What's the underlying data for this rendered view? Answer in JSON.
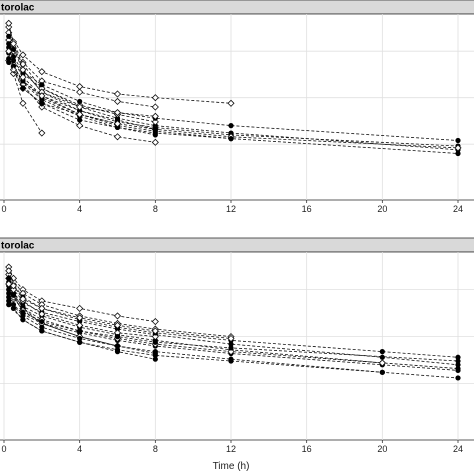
{
  "chart_data": [
    {
      "type": "line",
      "panel_title": "torolac",
      "x_ticks": [
        0,
        4,
        8,
        12,
        16,
        20,
        24
      ],
      "xlim": [
        0,
        24
      ],
      "ylim": [
        0,
        1
      ],
      "grid": true,
      "markers": {
        "observed": "open-diamond",
        "other": "filled-circle"
      },
      "series": [
        {
          "marker": "diamond",
          "x": [
            0.25,
            0.5,
            1,
            2,
            4,
            6,
            8
          ],
          "y": [
            0.86,
            0.8,
            0.74,
            0.64,
            0.58,
            0.53,
            0.5
          ]
        },
        {
          "marker": "circle",
          "x": [
            0.25,
            0.5,
            1,
            2,
            4,
            6,
            8,
            12,
            24
          ],
          "y": [
            0.82,
            0.75,
            0.68,
            0.6,
            0.5,
            0.44,
            0.4,
            0.36,
            0.27
          ]
        },
        {
          "marker": "diamond",
          "x": [
            0.25,
            1,
            2,
            4,
            6,
            8,
            12
          ],
          "y": [
            0.9,
            0.78,
            0.69,
            0.61,
            0.57,
            0.55,
            0.52
          ]
        },
        {
          "marker": "circle",
          "x": [
            0.5,
            1,
            2,
            4,
            6,
            8,
            12,
            24
          ],
          "y": [
            0.72,
            0.64,
            0.55,
            0.46,
            0.4,
            0.37,
            0.33,
            0.25
          ]
        },
        {
          "marker": "diamond",
          "x": [
            0.25,
            0.5,
            1,
            2,
            4,
            6,
            8
          ],
          "y": [
            0.93,
            0.85,
            0.73,
            0.6,
            0.51,
            0.46,
            0.42
          ]
        },
        {
          "marker": "circle",
          "x": [
            0.25,
            0.5,
            1,
            2,
            4,
            6,
            8
          ],
          "y": [
            0.79,
            0.72,
            0.63,
            0.54,
            0.45,
            0.39,
            0.35
          ]
        },
        {
          "marker": "diamond",
          "x": [
            0.5,
            1,
            2
          ],
          "y": [
            0.68,
            0.52,
            0.36
          ]
        },
        {
          "marker": "diamond",
          "x": [
            0.25,
            1,
            2,
            4,
            6,
            8
          ],
          "y": [
            0.75,
            0.62,
            0.5,
            0.4,
            0.34,
            0.31
          ]
        },
        {
          "marker": "circle",
          "x": [
            0.25,
            0.5,
            1,
            2,
            4,
            6,
            8,
            12,
            24
          ],
          "y": [
            0.84,
            0.77,
            0.69,
            0.62,
            0.53,
            0.47,
            0.44,
            0.4,
            0.32
          ]
        },
        {
          "marker": "circle",
          "x": [
            0.25,
            1,
            2,
            4,
            6,
            8,
            12,
            24
          ],
          "y": [
            0.76,
            0.64,
            0.56,
            0.48,
            0.42,
            0.39,
            0.35,
            0.29
          ]
        },
        {
          "marker": "diamond",
          "x": [
            0.5,
            1,
            2,
            4,
            6,
            8,
            12,
            24
          ],
          "y": [
            0.7,
            0.6,
            0.52,
            0.46,
            0.41,
            0.38,
            0.34,
            0.28
          ]
        },
        {
          "marker": "circle",
          "x": [
            0.25,
            0.5,
            1,
            2,
            4,
            6,
            8
          ],
          "y": [
            0.88,
            0.81,
            0.7,
            0.58,
            0.48,
            0.43,
            0.38
          ]
        },
        {
          "marker": "diamond",
          "x": [
            0.25,
            0.5,
            1,
            2,
            4,
            6,
            8
          ],
          "y": [
            0.95,
            0.84,
            0.7,
            0.58,
            0.5,
            0.47,
            0.45
          ]
        },
        {
          "marker": "circle",
          "x": [
            0.25,
            1,
            2,
            4,
            6,
            8,
            12
          ],
          "y": [
            0.74,
            0.6,
            0.52,
            0.43,
            0.39,
            0.36,
            0.33
          ]
        },
        {
          "marker": "diamond",
          "x": [
            0.25,
            1,
            2,
            4,
            6
          ],
          "y": [
            0.8,
            0.66,
            0.56,
            0.46,
            0.41
          ]
        }
      ]
    },
    {
      "type": "line",
      "panel_title": "torolac",
      "x_ticks": [
        0,
        4,
        8,
        12,
        16,
        20,
        24
      ],
      "xlabel": "Time (h)",
      "xlim": [
        0,
        24
      ],
      "ylim": [
        0,
        1
      ],
      "grid": true,
      "markers": {
        "observed": "open-diamond",
        "other": "filled-circle"
      },
      "series": [
        {
          "marker": "diamond",
          "x": [
            0.25,
            0.5,
            1,
            2,
            4,
            6,
            8
          ],
          "y": [
            0.92,
            0.86,
            0.8,
            0.74,
            0.7,
            0.66,
            0.63
          ]
        },
        {
          "marker": "circle",
          "x": [
            0.25,
            0.5,
            1,
            2,
            4,
            6,
            8,
            12,
            20,
            24
          ],
          "y": [
            0.84,
            0.78,
            0.73,
            0.68,
            0.63,
            0.59,
            0.56,
            0.51,
            0.44,
            0.4
          ]
        },
        {
          "marker": "diamond",
          "x": [
            0.25,
            1,
            2,
            4,
            6,
            8,
            12
          ],
          "y": [
            0.88,
            0.78,
            0.72,
            0.66,
            0.62,
            0.59,
            0.55
          ]
        },
        {
          "marker": "circle",
          "x": [
            0.25,
            1,
            2,
            4,
            6,
            8,
            12,
            20,
            24
          ],
          "y": [
            0.8,
            0.71,
            0.66,
            0.6,
            0.56,
            0.53,
            0.48,
            0.41,
            0.38
          ]
        },
        {
          "marker": "diamond",
          "x": [
            0.25,
            0.5,
            1,
            2,
            4,
            6,
            8
          ],
          "y": [
            0.86,
            0.8,
            0.74,
            0.67,
            0.61,
            0.57,
            0.55
          ]
        },
        {
          "marker": "circle",
          "x": [
            0.25,
            0.5,
            1,
            2,
            4,
            6,
            8,
            12,
            20,
            24
          ],
          "y": [
            0.78,
            0.72,
            0.67,
            0.62,
            0.57,
            0.53,
            0.5,
            0.46,
            0.4,
            0.37
          ]
        },
        {
          "marker": "diamond",
          "x": [
            0.5,
            1,
            2,
            4,
            6,
            8,
            12,
            20
          ],
          "y": [
            0.75,
            0.7,
            0.64,
            0.58,
            0.54,
            0.51,
            0.47,
            0.41
          ]
        },
        {
          "marker": "circle",
          "x": [
            0.25,
            1,
            2,
            4,
            6,
            8,
            12,
            20,
            24
          ],
          "y": [
            0.82,
            0.7,
            0.62,
            0.55,
            0.5,
            0.47,
            0.43,
            0.36,
            0.33
          ]
        },
        {
          "marker": "circle",
          "x": [
            0.25,
            0.5,
            1,
            2,
            4,
            6,
            8
          ],
          "y": [
            0.76,
            0.7,
            0.64,
            0.58,
            0.52,
            0.47,
            0.43
          ]
        },
        {
          "marker": "diamond",
          "x": [
            0.25,
            0.5,
            1,
            2,
            4,
            6
          ],
          "y": [
            0.83,
            0.76,
            0.69,
            0.62,
            0.55,
            0.5
          ]
        },
        {
          "marker": "circle",
          "x": [
            0.25,
            1,
            2,
            4,
            6,
            8,
            12,
            20,
            24
          ],
          "y": [
            0.86,
            0.76,
            0.7,
            0.64,
            0.6,
            0.57,
            0.53,
            0.47,
            0.44
          ]
        },
        {
          "marker": "circle",
          "x": [
            0.25,
            1,
            2,
            4,
            6,
            8,
            12,
            20
          ],
          "y": [
            0.72,
            0.64,
            0.58,
            0.52,
            0.48,
            0.45,
            0.42,
            0.36
          ]
        },
        {
          "marker": "diamond",
          "x": [
            0.25,
            0.5,
            1,
            2,
            4,
            6,
            8,
            12
          ],
          "y": [
            0.9,
            0.82,
            0.75,
            0.7,
            0.65,
            0.61,
            0.58,
            0.54
          ]
        },
        {
          "marker": "circle",
          "x": [
            0.5,
            1,
            2,
            4,
            6,
            8,
            12,
            24
          ],
          "y": [
            0.77,
            0.68,
            0.63,
            0.58,
            0.55,
            0.52,
            0.49,
            0.42
          ]
        },
        {
          "marker": "circle",
          "x": [
            0.25,
            1,
            2,
            4,
            6,
            8
          ],
          "y": [
            0.74,
            0.66,
            0.6,
            0.54,
            0.5,
            0.46
          ]
        }
      ]
    }
  ]
}
